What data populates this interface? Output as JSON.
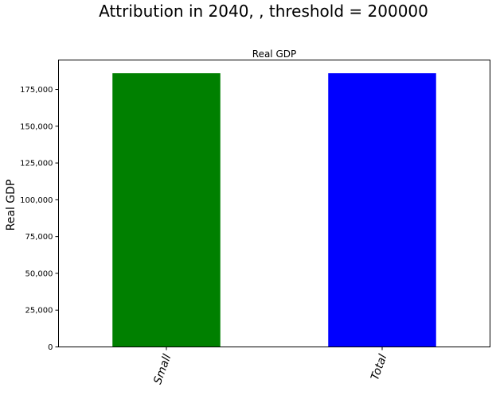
{
  "figure": {
    "suptitle": "Attribution in 2040, , threshold = 200000"
  },
  "chart_data": {
    "type": "bar",
    "title": "Real GDP",
    "xlabel": "",
    "ylabel": "Real GDP",
    "categories": [
      "Small",
      "Total"
    ],
    "values": [
      186000,
      186000
    ],
    "colors": [
      "#008000",
      "#0000ff"
    ],
    "ylim": [
      0,
      195000
    ],
    "yticks": [
      0,
      25000,
      50000,
      75000,
      100000,
      125000,
      150000,
      175000
    ],
    "ytick_labels": [
      "0",
      "25,000",
      "50,000",
      "75,000",
      "100,000",
      "125,000",
      "150,000",
      "175,000"
    ],
    "xtick_rotation_deg": 70,
    "xtick_style": "italic",
    "grid": false,
    "legend": "none"
  }
}
